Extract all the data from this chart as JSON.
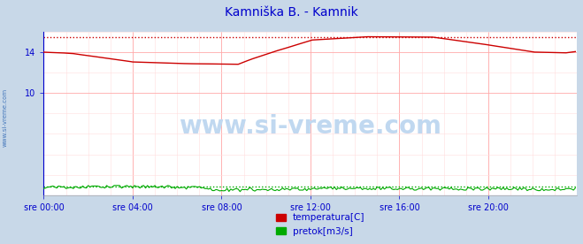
{
  "title": "Kamniška B. - Kamnik",
  "title_color": "#0000cc",
  "fig_bg_color": "#c8d8e8",
  "plot_bg_color": "#ffffff",
  "grid_color_major": "#ffcccc",
  "grid_color_minor": "#ffe8e8",
  "watermark": "www.si-vreme.com",
  "watermark_color": "#c0d8f0",
  "x_labels": [
    "sre 00:00",
    "sre 04:00",
    "sre 08:00",
    "sre 12:00",
    "sre 16:00",
    "sre 20:00"
  ],
  "x_ticks": [
    0,
    48,
    96,
    144,
    192,
    240
  ],
  "x_max": 287,
  "ylim": [
    0,
    16
  ],
  "y_ticks_labeled": [
    10,
    14
  ],
  "temp_max_line": 15.5,
  "flow_max_line": 0.85,
  "temp_color": "#cc0000",
  "flow_color": "#00aa00",
  "axis_color": "#0000cc",
  "arrow_color": "#cc0000",
  "sidebar_text": "www.si-vreme.com",
  "sidebar_color": "#4477bb",
  "legend_labels": [
    "temperatura[C]",
    "pretok[m3/s]"
  ],
  "legend_colors": [
    "#cc0000",
    "#00aa00"
  ]
}
